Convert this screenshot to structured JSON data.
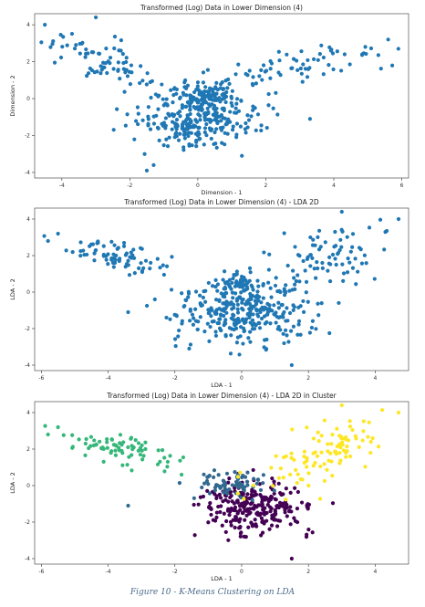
{
  "caption": "Figure 10 - K-Means Clustering on LDA",
  "chart_data": [
    {
      "type": "scatter",
      "title": "Transformed (Log) Data in Lower Dimension (4)",
      "xlabel": "Dimension - 1",
      "ylabel": "Dimension - 2",
      "xlim": [
        -4.8,
        6.2
      ],
      "ylim": [
        -4.3,
        4.6
      ],
      "xticks": [
        -4,
        -2,
        0,
        2,
        4,
        6
      ],
      "yticks": [
        -4,
        -2,
        0,
        2,
        4
      ],
      "point_color": "#1f77b4",
      "clusters": [
        {
          "n": 70,
          "cx": -2.9,
          "cy": 2.2,
          "sx": 0.75,
          "sy": 0.6,
          "slope": -0.45
        },
        {
          "n": 320,
          "cx": 0.0,
          "cy": -0.9,
          "sx": 0.9,
          "sy": 0.9,
          "slope": 0.0
        },
        {
          "n": 60,
          "cx": 0.2,
          "cy": 0.35,
          "sx": 0.35,
          "sy": 0.25,
          "slope": 0.0
        },
        {
          "n": 60,
          "cx": 3.2,
          "cy": 1.9,
          "sx": 1.0,
          "sy": 0.45,
          "slope": 0.25
        }
      ],
      "extra_points": [
        [
          -4.5,
          4.0
        ],
        [
          -3.0,
          4.4
        ],
        [
          3.3,
          -1.1
        ],
        [
          -1.5,
          -3.9
        ],
        [
          5.6,
          3.2
        ],
        [
          5.9,
          2.7
        ],
        [
          -1.3,
          -3.6
        ]
      ]
    },
    {
      "type": "scatter",
      "title": "Transformed (Log) Data in Lower Dimension (4) - LDA 2D",
      "xlabel": "LDA - 1",
      "ylabel": "LDA - 2",
      "xlim": [
        -6.2,
        5.0
      ],
      "ylim": [
        -4.3,
        4.6
      ],
      "xticks": [
        -6,
        -4,
        -2,
        0,
        2,
        4
      ],
      "yticks": [
        -4,
        -2,
        0,
        2,
        4
      ],
      "point_color": "#1f77b4",
      "clusters": [
        {
          "n": 75,
          "cx": -3.7,
          "cy": 2.0,
          "sx": 0.8,
          "sy": 0.4,
          "slope": -0.35
        },
        {
          "n": 320,
          "cx": 0.0,
          "cy": -1.1,
          "sx": 0.95,
          "sy": 0.85,
          "slope": 0.0
        },
        {
          "n": 50,
          "cx": -0.15,
          "cy": 0.5,
          "sx": 0.3,
          "sy": 0.2,
          "slope": 0.0
        },
        {
          "n": 100,
          "cx": 2.5,
          "cy": 1.7,
          "sx": 1.0,
          "sy": 0.85,
          "slope": 0.6
        }
      ],
      "extra_points": [
        [
          -5.8,
          2.8
        ],
        [
          -5.5,
          3.2
        ],
        [
          -3.4,
          -1.1
        ],
        [
          1.5,
          -4.0
        ],
        [
          4.7,
          4.0
        ],
        [
          3.0,
          4.4
        ],
        [
          -2.6,
          -0.4
        ]
      ]
    },
    {
      "type": "scatter",
      "title": "Transformed (Log) Data in Lower Dimension (4) - LDA 2D in Cluster",
      "xlabel": "LDA - 1",
      "ylabel": "LDA - 2",
      "xlim": [
        -6.2,
        5.0
      ],
      "ylim": [
        -4.3,
        4.6
      ],
      "xticks": [
        -6,
        -4,
        -2,
        0,
        2,
        4
      ],
      "yticks": [
        -4,
        -2,
        0,
        2,
        4
      ],
      "palette": [
        "#440154",
        "#31688e",
        "#35b779",
        "#fde725"
      ],
      "clusters": [
        {
          "n": 75,
          "cx": -3.7,
          "cy": 2.0,
          "sx": 0.8,
          "sy": 0.4,
          "slope": -0.35,
          "color": 2
        },
        {
          "n": 260,
          "cx": 0.4,
          "cy": -1.2,
          "sx": 0.85,
          "sy": 0.75,
          "slope": 0.0,
          "color": 0
        },
        {
          "n": 70,
          "cx": -0.35,
          "cy": 0.1,
          "sx": 0.55,
          "sy": 0.4,
          "slope": 0.0,
          "color": 1
        },
        {
          "n": 100,
          "cx": 2.6,
          "cy": 1.9,
          "sx": 0.95,
          "sy": 0.8,
          "slope": 0.55,
          "color": 3
        }
      ],
      "extra_points": [
        [
          -5.8,
          2.8,
          2
        ],
        [
          -5.5,
          3.2,
          2
        ],
        [
          -3.4,
          -1.1,
          1
        ],
        [
          1.5,
          -4.0,
          0
        ],
        [
          4.7,
          4.0,
          3
        ],
        [
          3.0,
          4.4,
          3
        ],
        [
          -1.8,
          0.6,
          2
        ]
      ]
    }
  ]
}
